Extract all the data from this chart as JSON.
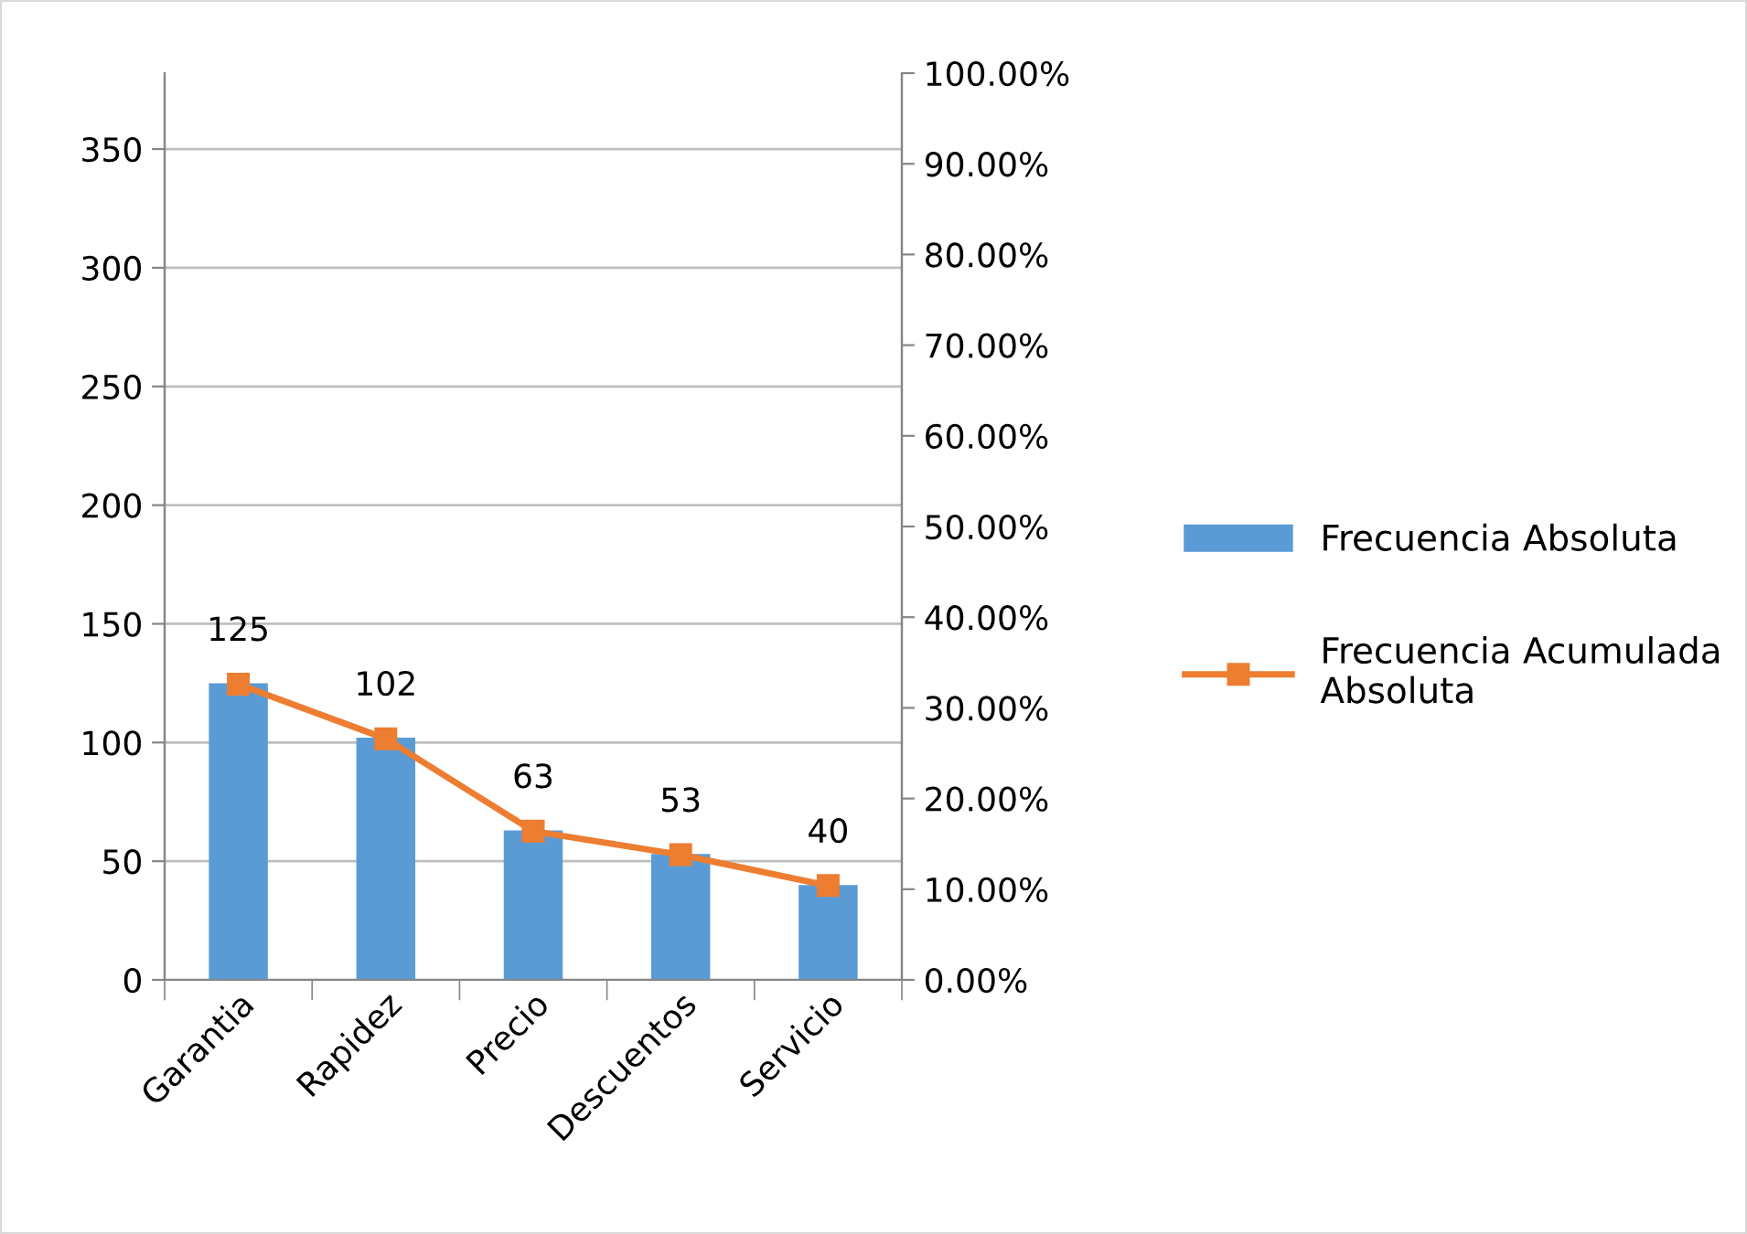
{
  "chart_data": {
    "type": "bar",
    "categories": [
      "Garantia",
      "Rapidez",
      "Precio",
      "Descuentos",
      "Servicio"
    ],
    "series": [
      {
        "name": "Frecuencia Absoluta",
        "color": "#5b9bd5",
        "values": [
          125,
          102,
          63,
          53,
          40
        ],
        "data_labels": true
      },
      {
        "name": "Frecuencia Acumulada\nAbsoluta",
        "type": "line",
        "axis": "y2",
        "color": "#ed7d31",
        "marker": "square",
        "line_style": "solid",
        "values": [
          32.6,
          26.6,
          16.4,
          13.8,
          10.4
        ]
      }
    ],
    "ylim": [
      0,
      382
    ],
    "yticks": [
      0,
      50,
      100,
      150,
      200,
      250,
      300,
      350
    ],
    "y2lim": [
      0,
      100
    ],
    "y2ticks": [
      {
        "value": 0,
        "label": "0.00%"
      },
      {
        "value": 10,
        "label": "10.00%"
      },
      {
        "value": 20,
        "label": "20.00%"
      },
      {
        "value": 30,
        "label": "30.00%"
      },
      {
        "value": 40,
        "label": "40.00%"
      },
      {
        "value": 50,
        "label": "50.00%"
      },
      {
        "value": 60,
        "label": "60.00%"
      },
      {
        "value": 70,
        "label": "70.00%"
      },
      {
        "value": 80,
        "label": "80.00%"
      },
      {
        "value": 90,
        "label": "90.00%"
      },
      {
        "value": 100,
        "label": "100.00%"
      }
    ],
    "grid": "y",
    "legend": "right"
  }
}
